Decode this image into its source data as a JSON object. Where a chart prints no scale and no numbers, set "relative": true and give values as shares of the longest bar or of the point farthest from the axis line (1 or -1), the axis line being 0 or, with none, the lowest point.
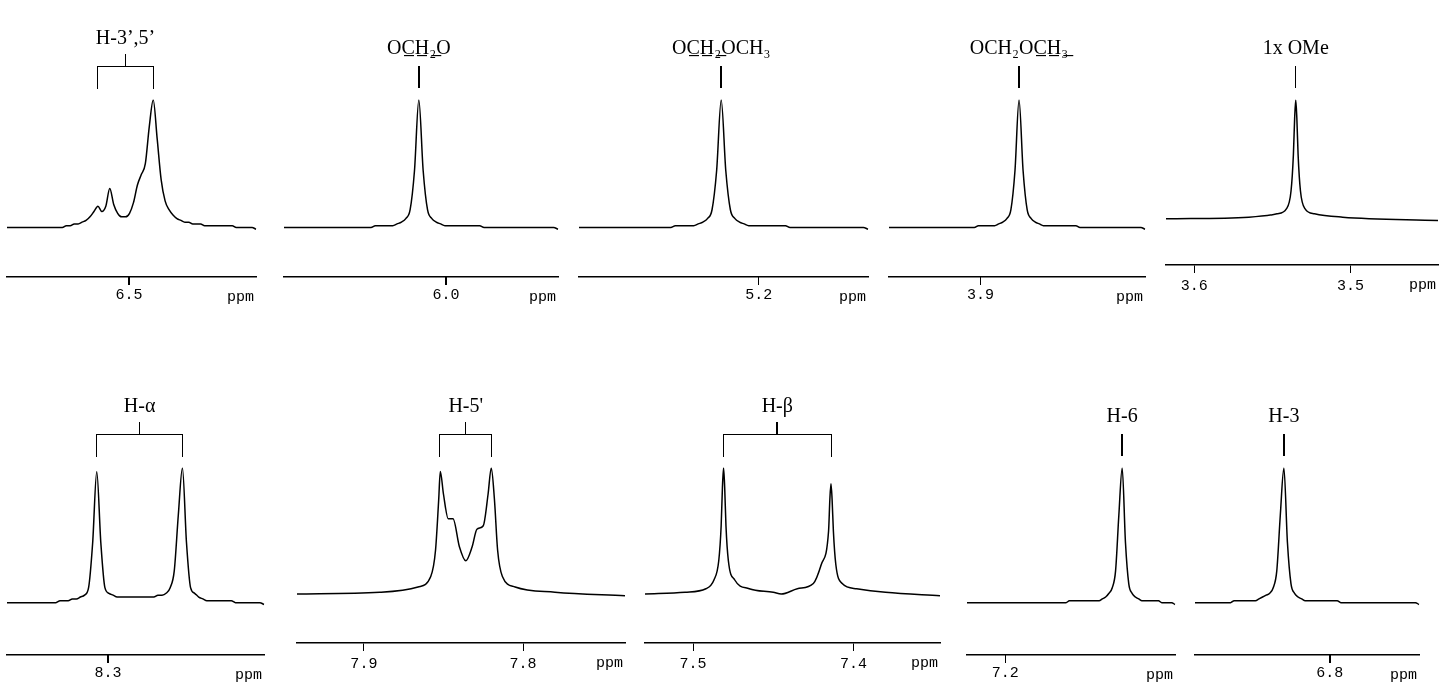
{
  "chart_data": [
    {
      "type": "line",
      "title": "H-3’,5’",
      "xlabel": "ppm",
      "relative": true,
      "tick_labels": "x",
      "color": "#000000",
      "annotations": [
        "6.5"
      ],
      "categories": [
        null,
        null,
        null,
        null,
        null,
        null,
        null,
        null,
        null,
        null,
        null,
        null,
        null,
        null,
        null,
        null,
        null,
        null,
        null,
        null,
        null,
        null,
        null,
        null,
        null,
        null,
        null,
        null,
        null,
        null,
        null,
        null,
        null,
        null,
        null,
        null,
        null,
        null,
        null,
        null,
        null,
        null,
        null,
        null,
        null,
        null,
        null,
        null,
        null,
        null,
        null,
        null,
        null,
        null,
        null,
        null,
        null,
        null,
        null,
        null,
        null,
        null,
        null,
        null
      ],
      "values": [
        0.28,
        0.28,
        0.28,
        0.28,
        0.28,
        0.28,
        0.28,
        0.28,
        0.28,
        0.28,
        0.28,
        0.28,
        0.28,
        0.28,
        0.28,
        0.29,
        0.29,
        0.3,
        0.3,
        0.31,
        0.32,
        0.34,
        0.37,
        0.4,
        0.37,
        0.4,
        0.5,
        0.41,
        0.36,
        0.34,
        0.34,
        0.36,
        0.42,
        0.52,
        0.58,
        0.64,
        0.85,
        1,
        0.78,
        0.55,
        0.43,
        0.38,
        0.35,
        0.33,
        0.32,
        0.31,
        0.31,
        0.3,
        0.3,
        0.3,
        0.29,
        0.29,
        0.29,
        0.29,
        0.29,
        0.29,
        0.29,
        0.29,
        0.28,
        0.28,
        0.28,
        0.28,
        0.28,
        0.27
      ]
    },
    {
      "type": "line",
      "title": "OC̲H̲₂̲O",
      "xlabel": "ppm",
      "relative": true,
      "tick_labels": "x",
      "color": "#000000",
      "annotations": [
        "6.0"
      ],
      "categories": [
        null,
        null,
        null,
        null,
        null,
        null,
        null,
        null,
        null,
        null,
        null,
        null,
        null,
        null,
        null,
        null,
        null,
        null,
        null,
        null,
        null,
        null,
        null,
        null,
        null,
        null,
        null,
        null,
        null,
        null,
        null,
        null,
        null,
        null,
        null,
        null,
        null,
        null,
        null,
        null,
        null,
        null,
        null,
        null,
        null,
        null,
        null,
        null,
        null,
        null,
        null,
        null,
        null,
        null,
        null,
        null,
        null,
        null,
        null,
        null,
        null,
        null,
        null,
        null
      ],
      "values": [
        0.28,
        0.28,
        0.28,
        0.28,
        0.28,
        0.28,
        0.28,
        0.28,
        0.28,
        0.28,
        0.28,
        0.28,
        0.28,
        0.28,
        0.28,
        0.28,
        0.28,
        0.28,
        0.28,
        0.28,
        0.28,
        0.29,
        0.29,
        0.29,
        0.29,
        0.29,
        0.3,
        0.31,
        0.33,
        0.38,
        0.6,
        1,
        0.6,
        0.38,
        0.33,
        0.31,
        0.3,
        0.29,
        0.29,
        0.29,
        0.29,
        0.29,
        0.29,
        0.29,
        0.29,
        0.29,
        0.28,
        0.28,
        0.28,
        0.28,
        0.28,
        0.28,
        0.28,
        0.28,
        0.28,
        0.28,
        0.28,
        0.28,
        0.28,
        0.28,
        0.28,
        0.28,
        0.28,
        0.27
      ]
    },
    {
      "type": "line",
      "title": "OC̲H̲₂̲OCH₃",
      "xlabel": "ppm",
      "relative": true,
      "tick_labels": "x",
      "color": "#000000",
      "annotations": [
        "5.2"
      ],
      "categories": [
        null,
        null,
        null,
        null,
        null,
        null,
        null,
        null,
        null,
        null,
        null,
        null,
        null,
        null,
        null,
        null,
        null,
        null,
        null,
        null,
        null,
        null,
        null,
        null,
        null,
        null,
        null,
        null,
        null,
        null,
        null,
        null,
        null,
        null,
        null,
        null,
        null,
        null,
        null,
        null,
        null,
        null,
        null,
        null,
        null,
        null,
        null,
        null,
        null,
        null,
        null,
        null,
        null,
        null,
        null,
        null,
        null,
        null,
        null,
        null,
        null,
        null,
        null,
        null
      ],
      "values": [
        0.28,
        0.28,
        0.28,
        0.28,
        0.28,
        0.28,
        0.28,
        0.28,
        0.28,
        0.28,
        0.28,
        0.28,
        0.28,
        0.28,
        0.28,
        0.28,
        0.28,
        0.28,
        0.28,
        0.28,
        0.28,
        0.29,
        0.29,
        0.29,
        0.29,
        0.29,
        0.3,
        0.31,
        0.33,
        0.38,
        0.6,
        1,
        0.6,
        0.38,
        0.33,
        0.31,
        0.3,
        0.29,
        0.29,
        0.29,
        0.29,
        0.29,
        0.29,
        0.29,
        0.29,
        0.29,
        0.28,
        0.28,
        0.28,
        0.28,
        0.28,
        0.28,
        0.28,
        0.28,
        0.28,
        0.28,
        0.28,
        0.28,
        0.28,
        0.28,
        0.28,
        0.28,
        0.28,
        0.27
      ]
    },
    {
      "type": "line",
      "title": "OCH₂OC̲H̲₃̲",
      "xlabel": "ppm",
      "relative": true,
      "tick_labels": "x",
      "color": "#000000",
      "annotations": [
        "3.9"
      ],
      "categories": [
        null,
        null,
        null,
        null,
        null,
        null,
        null,
        null,
        null,
        null,
        null,
        null,
        null,
        null,
        null,
        null,
        null,
        null,
        null,
        null,
        null,
        null,
        null,
        null,
        null,
        null,
        null,
        null,
        null,
        null,
        null,
        null,
        null,
        null,
        null,
        null,
        null,
        null,
        null,
        null,
        null,
        null,
        null,
        null,
        null,
        null,
        null,
        null,
        null,
        null,
        null,
        null,
        null,
        null,
        null,
        null,
        null,
        null,
        null,
        null,
        null,
        null,
        null,
        null
      ],
      "values": [
        0.28,
        0.28,
        0.28,
        0.28,
        0.28,
        0.28,
        0.28,
        0.28,
        0.28,
        0.28,
        0.28,
        0.28,
        0.28,
        0.28,
        0.28,
        0.28,
        0.28,
        0.28,
        0.28,
        0.28,
        0.28,
        0.28,
        0.29,
        0.29,
        0.29,
        0.29,
        0.29,
        0.3,
        0.31,
        0.33,
        0.38,
        0.6,
        1,
        0.6,
        0.38,
        0.33,
        0.31,
        0.3,
        0.29,
        0.29,
        0.29,
        0.29,
        0.29,
        0.29,
        0.29,
        0.29,
        0.29,
        0.28,
        0.28,
        0.28,
        0.28,
        0.28,
        0.28,
        0.28,
        0.28,
        0.28,
        0.28,
        0.28,
        0.28,
        0.28,
        0.28,
        0.28,
        0.28,
        0.27
      ]
    },
    {
      "type": "line",
      "title": "1x OMe",
      "xlabel": "ppm",
      "relative": true,
      "tick_labels": "x",
      "color": "#000000",
      "xlim": [
        3.618,
        3.444
      ],
      "xticks": [
        3.6,
        3.5
      ],
      "x": [
        3.618,
        3.565,
        3.547,
        3.541,
        3.538,
        3.5365,
        3.5357,
        3.535,
        3.5343,
        3.5335,
        3.532,
        3.529,
        3.523,
        3.505,
        3.444
      ],
      "values": [
        0.28,
        0.29,
        0.31,
        0.34,
        0.45,
        0.67,
        0.89,
        1,
        0.89,
        0.67,
        0.45,
        0.34,
        0.31,
        0.29,
        0.27
      ]
    },
    {
      "type": "line",
      "title": "H-α",
      "xlabel": "ppm",
      "relative": true,
      "tick_labels": "x",
      "color": "#000000",
      "annotations": [
        "8.3"
      ],
      "categories": [
        null,
        null,
        null,
        null,
        null,
        null,
        null,
        null,
        null,
        null,
        null,
        null,
        null,
        null,
        null,
        null,
        null,
        null,
        null,
        null,
        null,
        null,
        null,
        null,
        null,
        null,
        null,
        null,
        null,
        null,
        null,
        null,
        null,
        null,
        null,
        null,
        null,
        null,
        null,
        null,
        null,
        null,
        null,
        null,
        null,
        null,
        null,
        null,
        null,
        null,
        null,
        null,
        null,
        null,
        null,
        null,
        null,
        null,
        null,
        null,
        null,
        null,
        null,
        null
      ],
      "values": [
        0.28,
        0.28,
        0.28,
        0.28,
        0.28,
        0.28,
        0.28,
        0.28,
        0.28,
        0.28,
        0.28,
        0.28,
        0.28,
        0.29,
        0.29,
        0.29,
        0.3,
        0.3,
        0.31,
        0.32,
        0.36,
        0.6,
        0.98,
        0.6,
        0.36,
        0.33,
        0.32,
        0.31,
        0.31,
        0.31,
        0.31,
        0.31,
        0.31,
        0.31,
        0.31,
        0.31,
        0.31,
        0.32,
        0.32,
        0.33,
        0.36,
        0.45,
        0.75,
        1,
        0.6,
        0.36,
        0.33,
        0.31,
        0.3,
        0.29,
        0.29,
        0.29,
        0.29,
        0.29,
        0.29,
        0.29,
        0.28,
        0.28,
        0.28,
        0.28,
        0.28,
        0.28,
        0.28,
        0.27
      ]
    },
    {
      "type": "line",
      "title": "H-5'",
      "xlabel": "ppm",
      "relative": true,
      "tick_labels": "x",
      "color": "#000000",
      "xlim": [
        7.942,
        7.736
      ],
      "xticks": [
        7.9,
        7.8
      ],
      "x": [
        7.942,
        7.89,
        7.866,
        7.858,
        7.855,
        7.853,
        7.852,
        7.85,
        7.847,
        7.844,
        7.84,
        7.836,
        7.832,
        7.829,
        7.825,
        7.822,
        7.82,
        7.818,
        7.816,
        7.813,
        7.805,
        7.78,
        7.736
      ],
      "values": [
        0.28,
        0.29,
        0.32,
        0.38,
        0.53,
        0.82,
        0.98,
        0.85,
        0.71,
        0.71,
        0.55,
        0.47,
        0.55,
        0.65,
        0.67,
        0.85,
        1,
        0.82,
        0.53,
        0.38,
        0.32,
        0.29,
        0.27
      ]
    },
    {
      "type": "line",
      "title": "H-β",
      "xlabel": "ppm",
      "relative": true,
      "tick_labels": "x",
      "color": "#000000",
      "xlim": [
        7.53,
        7.346
      ],
      "xticks": [
        7.5,
        7.4
      ],
      "x": [
        7.53,
        7.505,
        7.492,
        7.487,
        7.484,
        7.4825,
        7.4817,
        7.481,
        7.4803,
        7.4795,
        7.478,
        7.474,
        7.465,
        7.45,
        7.445,
        7.435,
        7.425,
        7.42,
        7.4155,
        7.4147,
        7.414,
        7.4133,
        7.4125,
        7.411,
        7.407,
        7.398,
        7.38,
        7.346
      ],
      "values": [
        0.28,
        0.29,
        0.31,
        0.36,
        0.47,
        0.67,
        0.89,
        1,
        0.89,
        0.67,
        0.47,
        0.36,
        0.31,
        0.29,
        0.28,
        0.31,
        0.34,
        0.45,
        0.64,
        0.82,
        0.91,
        0.82,
        0.64,
        0.45,
        0.34,
        0.31,
        0.29,
        0.27
      ]
    },
    {
      "type": "line",
      "title": "H-6",
      "xlabel": "ppm",
      "relative": true,
      "tick_labels": "x",
      "color": "#000000",
      "annotations": [
        "7.2"
      ],
      "categories": [
        null,
        null,
        null,
        null,
        null,
        null,
        null,
        null,
        null,
        null,
        null,
        null,
        null,
        null,
        null,
        null,
        null,
        null,
        null,
        null,
        null,
        null,
        null,
        null,
        null,
        null,
        null,
        null,
        null,
        null,
        null,
        null,
        null,
        null,
        null,
        null,
        null,
        null,
        null,
        null,
        null,
        null,
        null,
        null,
        null,
        null,
        null,
        null,
        null,
        null,
        null,
        null,
        null,
        null,
        null,
        null,
        null,
        null,
        null,
        null,
        null,
        null,
        null,
        null
      ],
      "values": [
        0.28,
        0.28,
        0.28,
        0.28,
        0.28,
        0.28,
        0.28,
        0.28,
        0.28,
        0.28,
        0.28,
        0.28,
        0.28,
        0.28,
        0.28,
        0.28,
        0.28,
        0.28,
        0.28,
        0.28,
        0.28,
        0.28,
        0.28,
        0.28,
        0.28,
        0.28,
        0.28,
        0.28,
        0.28,
        0.28,
        0.28,
        0.29,
        0.29,
        0.29,
        0.29,
        0.29,
        0.29,
        0.29,
        0.29,
        0.29,
        0.29,
        0.3,
        0.31,
        0.33,
        0.36,
        0.45,
        0.75,
        1,
        0.6,
        0.38,
        0.33,
        0.31,
        0.3,
        0.29,
        0.29,
        0.29,
        0.29,
        0.29,
        0.29,
        0.28,
        0.28,
        0.28,
        0.28,
        0.27
      ]
    },
    {
      "type": "line",
      "title": "H-3",
      "xlabel": "ppm",
      "relative": true,
      "tick_labels": "x",
      "color": "#000000",
      "annotations": [
        "6.8"
      ],
      "categories": [
        null,
        null,
        null,
        null,
        null,
        null,
        null,
        null,
        null,
        null,
        null,
        null,
        null,
        null,
        null,
        null,
        null,
        null,
        null,
        null,
        null,
        null,
        null,
        null,
        null,
        null,
        null,
        null,
        null,
        null,
        null,
        null,
        null,
        null,
        null,
        null,
        null,
        null,
        null,
        null,
        null,
        null,
        null,
        null,
        null,
        null,
        null,
        null,
        null,
        null,
        null,
        null,
        null,
        null,
        null,
        null,
        null,
        null,
        null,
        null,
        null,
        null,
        null,
        null
      ],
      "values": [
        0.28,
        0.28,
        0.28,
        0.28,
        0.28,
        0.28,
        0.28,
        0.28,
        0.28,
        0.28,
        0.28,
        0.29,
        0.29,
        0.29,
        0.29,
        0.29,
        0.29,
        0.29,
        0.3,
        0.31,
        0.32,
        0.33,
        0.36,
        0.45,
        0.75,
        1,
        0.6,
        0.38,
        0.33,
        0.31,
        0.3,
        0.29,
        0.29,
        0.29,
        0.29,
        0.29,
        0.29,
        0.29,
        0.29,
        0.29,
        0.29,
        0.28,
        0.28,
        0.28,
        0.28,
        0.28,
        0.28,
        0.28,
        0.28,
        0.28,
        0.28,
        0.28,
        0.28,
        0.28,
        0.28,
        0.28,
        0.28,
        0.28,
        0.28,
        0.28,
        0.28,
        0.28,
        0.28,
        0.27
      ]
    }
  ]
}
